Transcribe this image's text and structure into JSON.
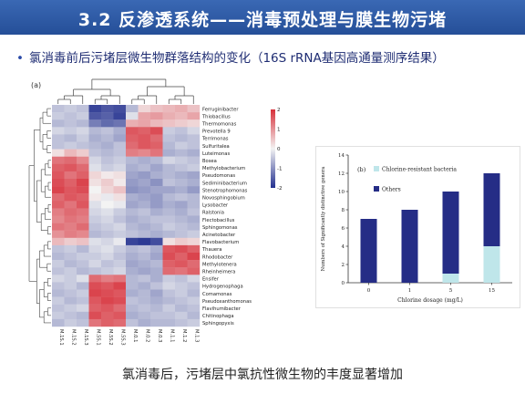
{
  "slide": {
    "title": "3.2 反渗透系统——消毒预处理与膜生物污堵",
    "bullet": "氯消毒前后污堵层微生物群落结构的变化（16S rRNA基因高通量测序结果）",
    "caption": "氯消毒后，污堵层中氯抗性微生物的丰度显著增加"
  },
  "heatmap": {
    "panel_label": "(a)",
    "colorbar_ticks": [
      "2",
      "1",
      "0",
      "-1",
      "-2"
    ],
    "colors": {
      "high": "#d7303a",
      "mid": "#f3f3f3",
      "low": "#23308f"
    },
    "columns": [
      "M.1S.1",
      "M.1S.2",
      "M.1S.3",
      "M.5S.1",
      "M.5S.2",
      "M.5S.3",
      "M.0.1",
      "M.0.2",
      "M.0.3",
      "M.1.1",
      "M.1.2",
      "M.1.3"
    ],
    "rows": [
      "Ferruginibacter",
      "Thiobacillus",
      "Thermomonas",
      "Prevotella 9",
      "Terrimonas",
      "Sulfuritalea",
      "Luteimonas",
      "Bosea",
      "Methylobacterium",
      "Pseudomonas",
      "Sediminibacterium",
      "Stenotrophomonas",
      "Novosphingobium",
      "Lysobacter",
      "Ralstonia",
      "Flectobacillus",
      "Sphingomonas",
      "Acinetobacter",
      "Flavobacterium",
      "Thauera",
      "Rhodobacter",
      "Methylotenera",
      "Rheinheimera",
      "Ensifer",
      "Hydrogenophaga",
      "Comamonas",
      "Pseudoxanthomonas",
      "Flavihumibacter",
      "Chitinophaga",
      "Sphingopyxis"
    ],
    "matrix": [
      [
        -0.5,
        -0.4,
        -0.5,
        -1.8,
        -1.6,
        -1.7,
        -0.6,
        0.3,
        0.5,
        0.6,
        0.7,
        0.5
      ],
      [
        -0.4,
        -0.5,
        -0.4,
        -1.6,
        -1.5,
        -1.8,
        -0.2,
        0.8,
        0.9,
        0.7,
        0.6,
        0.8
      ],
      [
        -0.6,
        -0.5,
        -0.6,
        -1.2,
        -1.4,
        -1.3,
        0.7,
        0.8,
        0.6,
        0.5,
        0.4,
        0.3
      ],
      [
        -0.3,
        -0.4,
        -0.3,
        -0.6,
        -0.5,
        -0.7,
        1.6,
        1.5,
        1.7,
        -0.4,
        -0.5,
        -0.3
      ],
      [
        -0.5,
        -0.6,
        -0.4,
        -0.7,
        -0.6,
        -0.8,
        1.5,
        1.6,
        1.4,
        -0.5,
        -0.6,
        -0.5
      ],
      [
        -0.5,
        -0.4,
        -0.5,
        -0.6,
        -0.7,
        -0.5,
        1.4,
        1.6,
        1.5,
        -0.6,
        -0.4,
        -0.5
      ],
      [
        0.2,
        0.6,
        0.4,
        -0.5,
        -0.6,
        -0.5,
        1.2,
        1.1,
        1.3,
        -0.7,
        -0.6,
        -0.7
      ],
      [
        1.3,
        1.4,
        1.1,
        -0.3,
        -0.5,
        -0.4,
        -0.6,
        -0.7,
        -0.6,
        -0.3,
        -0.4,
        -0.5
      ],
      [
        1.5,
        1.6,
        1.4,
        -0.2,
        -0.4,
        -0.3,
        -0.7,
        -0.6,
        -0.8,
        -0.6,
        -0.5,
        -0.4
      ],
      [
        1.6,
        1.3,
        1.5,
        0.3,
        0.1,
        0.2,
        -0.8,
        -0.9,
        -0.7,
        -0.6,
        -0.7,
        -0.8
      ],
      [
        1.7,
        1.5,
        1.8,
        0.2,
        0.4,
        0.1,
        -0.9,
        -0.8,
        -1.0,
        -0.5,
        -0.6,
        -0.7
      ],
      [
        1.8,
        1.6,
        1.7,
        0.0,
        0.3,
        0.5,
        -1.0,
        -0.9,
        -0.8,
        -0.8,
        -0.7,
        -0.9
      ],
      [
        1.4,
        1.6,
        1.5,
        0.1,
        -0.1,
        0.2,
        -0.7,
        -0.8,
        -0.9,
        -0.6,
        -0.5,
        -0.6
      ],
      [
        1.5,
        1.3,
        1.6,
        -0.2,
        0.0,
        -0.1,
        -0.8,
        -0.7,
        -0.9,
        -0.7,
        -0.8,
        -0.6
      ],
      [
        1.2,
        1.4,
        1.3,
        -0.3,
        -0.2,
        -0.4,
        -0.6,
        -0.5,
        -0.7,
        -0.6,
        -0.7,
        -0.5
      ],
      [
        1.1,
        1.3,
        1.2,
        -0.4,
        -0.3,
        -0.5,
        -0.7,
        -0.6,
        -0.5,
        -0.5,
        -0.6,
        -0.7
      ],
      [
        1.3,
        1.2,
        1.4,
        -0.5,
        -0.4,
        -0.3,
        -0.6,
        -0.7,
        -0.6,
        -0.4,
        -0.5,
        -0.6
      ],
      [
        1.0,
        1.2,
        1.1,
        -0.6,
        -0.5,
        -0.4,
        -0.5,
        -0.6,
        -0.7,
        -0.6,
        -0.5,
        -0.4
      ],
      [
        0.6,
        0.4,
        0.5,
        -0.2,
        -0.3,
        -0.1,
        -1.8,
        -1.9,
        -1.7,
        0.2,
        0.4,
        0.3
      ],
      [
        -0.5,
        -0.4,
        -0.6,
        -0.3,
        -0.2,
        -0.4,
        -0.6,
        -0.5,
        -0.7,
        1.6,
        1.7,
        1.5
      ],
      [
        -0.6,
        -0.5,
        -0.4,
        -0.4,
        -0.3,
        -0.5,
        -0.7,
        -0.6,
        -0.8,
        1.7,
        1.5,
        1.8
      ],
      [
        -0.4,
        -0.6,
        -0.5,
        -0.3,
        -0.5,
        -0.4,
        -0.8,
        -0.7,
        -0.6,
        1.5,
        1.6,
        1.4
      ],
      [
        -0.5,
        -0.4,
        -0.6,
        -0.5,
        -0.4,
        -0.3,
        -0.7,
        -0.8,
        -0.7,
        1.4,
        1.3,
        1.5
      ],
      [
        -0.3,
        -0.4,
        -0.2,
        1.4,
        1.2,
        1.3,
        -0.6,
        -0.5,
        -0.7,
        -0.4,
        -0.5,
        -0.3
      ],
      [
        -0.5,
        -0.4,
        -0.6,
        1.7,
        1.6,
        1.8,
        -0.6,
        -0.7,
        -0.5,
        -0.3,
        -0.4,
        -0.5
      ],
      [
        -0.6,
        -0.5,
        -0.4,
        1.8,
        1.7,
        1.6,
        -0.7,
        -0.6,
        -0.8,
        -0.5,
        -0.4,
        -0.6
      ],
      [
        -0.4,
        -0.6,
        -0.5,
        1.6,
        1.8,
        1.7,
        -0.5,
        -0.6,
        -0.7,
        -0.6,
        -0.5,
        -0.4
      ],
      [
        -0.5,
        -0.4,
        -0.3,
        1.5,
        1.6,
        1.4,
        -0.6,
        -0.5,
        -0.6,
        -0.4,
        -0.6,
        -0.5
      ],
      [
        -0.4,
        -0.5,
        -0.6,
        1.7,
        1.5,
        1.6,
        -0.7,
        -0.6,
        -0.5,
        -0.5,
        -0.4,
        -0.6
      ],
      [
        -0.6,
        -0.4,
        -0.5,
        1.3,
        1.5,
        1.4,
        -0.5,
        -0.7,
        -0.6,
        -0.6,
        -0.5,
        -0.4
      ]
    ]
  },
  "chart_data": {
    "type": "bar",
    "panel_label": "(b)",
    "categories": [
      "0",
      "1",
      "5",
      "15"
    ],
    "series": [
      {
        "name": "Chlorine-resistant bacteria",
        "values": [
          0,
          0,
          1,
          4
        ],
        "color": "#bfe6ea"
      },
      {
        "name": "Others",
        "values": [
          7,
          8,
          9,
          8
        ],
        "color": "#252d86"
      }
    ],
    "ylim": [
      0,
      14
    ],
    "yticks": [
      "0",
      "2",
      "4",
      "6",
      "8",
      "10",
      "12",
      "14"
    ],
    "xlabel": "Chlorine dosage (mg/L)",
    "ylabel": "Numbers of Significantly distinctive genera",
    "legend": "top-left",
    "grid": false
  }
}
